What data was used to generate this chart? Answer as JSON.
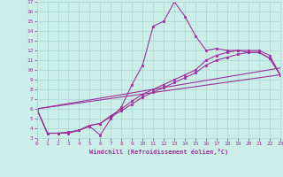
{
  "xlabel": "Windchill (Refroidissement éolien,°C)",
  "bg_color": "#cceee8",
  "grid_color": "#aad8d4",
  "line_color": "#993399",
  "xlim": [
    0,
    23
  ],
  "ylim": [
    3,
    17
  ],
  "xticks": [
    0,
    1,
    2,
    3,
    4,
    5,
    6,
    7,
    8,
    9,
    10,
    11,
    12,
    13,
    14,
    15,
    16,
    17,
    18,
    19,
    20,
    21,
    22,
    23
  ],
  "yticks": [
    3,
    4,
    5,
    6,
    7,
    8,
    9,
    10,
    11,
    12,
    13,
    14,
    15,
    16,
    17
  ],
  "curves": [
    {
      "x": [
        0,
        1,
        2,
        3,
        4,
        5,
        6,
        7,
        8,
        9,
        10,
        11,
        12,
        13,
        14,
        15,
        16,
        17,
        18,
        19,
        20,
        21,
        22,
        23
      ],
      "y": [
        6.0,
        3.5,
        3.5,
        3.5,
        3.8,
        4.2,
        3.3,
        5.0,
        6.2,
        8.5,
        10.5,
        14.5,
        15.0,
        17.0,
        15.5,
        13.5,
        12.0,
        12.2,
        12.0,
        12.0,
        11.8,
        11.8,
        11.2,
        9.5
      ],
      "has_markers": true
    },
    {
      "x": [
        0,
        1,
        2,
        3,
        4,
        5,
        6,
        7,
        8,
        9,
        10,
        11,
        12,
        13,
        14,
        15,
        16,
        17,
        18,
        19,
        20,
        21,
        22,
        23
      ],
      "y": [
        6.0,
        3.5,
        3.5,
        3.6,
        3.8,
        4.3,
        4.5,
        5.3,
        6.0,
        6.8,
        7.5,
        8.0,
        8.5,
        9.0,
        9.5,
        10.0,
        11.0,
        11.5,
        11.8,
        12.0,
        12.0,
        12.0,
        11.5,
        9.5
      ],
      "has_markers": true
    },
    {
      "x": [
        0,
        1,
        2,
        3,
        4,
        5,
        6,
        7,
        8,
        9,
        10,
        11,
        12,
        13,
        14,
        15,
        16,
        17,
        18,
        19,
        20,
        21,
        22,
        23
      ],
      "y": [
        6.0,
        3.5,
        3.5,
        3.6,
        3.8,
        4.3,
        4.5,
        5.2,
        5.8,
        6.5,
        7.2,
        7.7,
        8.2,
        8.7,
        9.2,
        9.7,
        10.5,
        11.0,
        11.3,
        11.6,
        11.8,
        11.8,
        11.2,
        9.5
      ],
      "has_markers": true
    },
    {
      "x": [
        0,
        23
      ],
      "y": [
        6.0,
        9.5
      ],
      "has_markers": false
    },
    {
      "x": [
        0,
        23
      ],
      "y": [
        6.0,
        10.2
      ],
      "has_markers": false
    }
  ]
}
